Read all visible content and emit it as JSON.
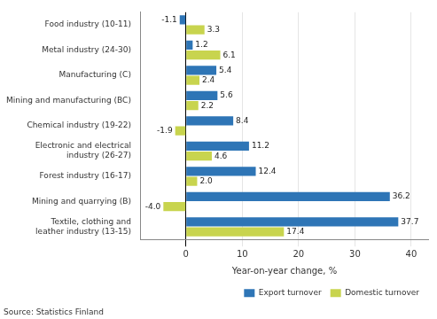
{
  "chart_data": {
    "type": "bar",
    "orientation": "horizontal",
    "categories": [
      "Food industry (10-11)",
      "Metal industry (24-30)",
      "Manufacturing (C)",
      "Mining and manufacturing (BC)",
      "Chemical industry (19-22)",
      "Electronic and electrical\nindustry (26-27)",
      "Forest industry (16-17)",
      "Mining and quarrying (B)",
      "Textile, clothing and\nleather industry (13-15)"
    ],
    "series": [
      {
        "name": "Export turnover",
        "color": "#2e75b6",
        "values": [
          -1.1,
          1.2,
          5.4,
          5.6,
          8.4,
          11.2,
          12.4,
          36.2,
          37.7
        ]
      },
      {
        "name": "Domestic turnover",
        "color": "#c8d44e",
        "values": [
          3.3,
          6.1,
          2.4,
          2.2,
          -1.9,
          4.6,
          2.0,
          -4.0,
          17.4
        ],
        "value_labels": [
          "3.3",
          "6.1",
          "2.4",
          "2.2",
          "-1.9",
          "4.6",
          "2.0",
          "-4.0",
          "17.4"
        ]
      }
    ],
    "xlabel": "Year-on-year change, %",
    "xlim": [
      -8,
      43
    ],
    "xticks": [
      0,
      10,
      20,
      30,
      40
    ],
    "grid": true,
    "legend": "lower right",
    "data_labels": true,
    "annotations": [
      "Source: Statistics Finland"
    ]
  }
}
